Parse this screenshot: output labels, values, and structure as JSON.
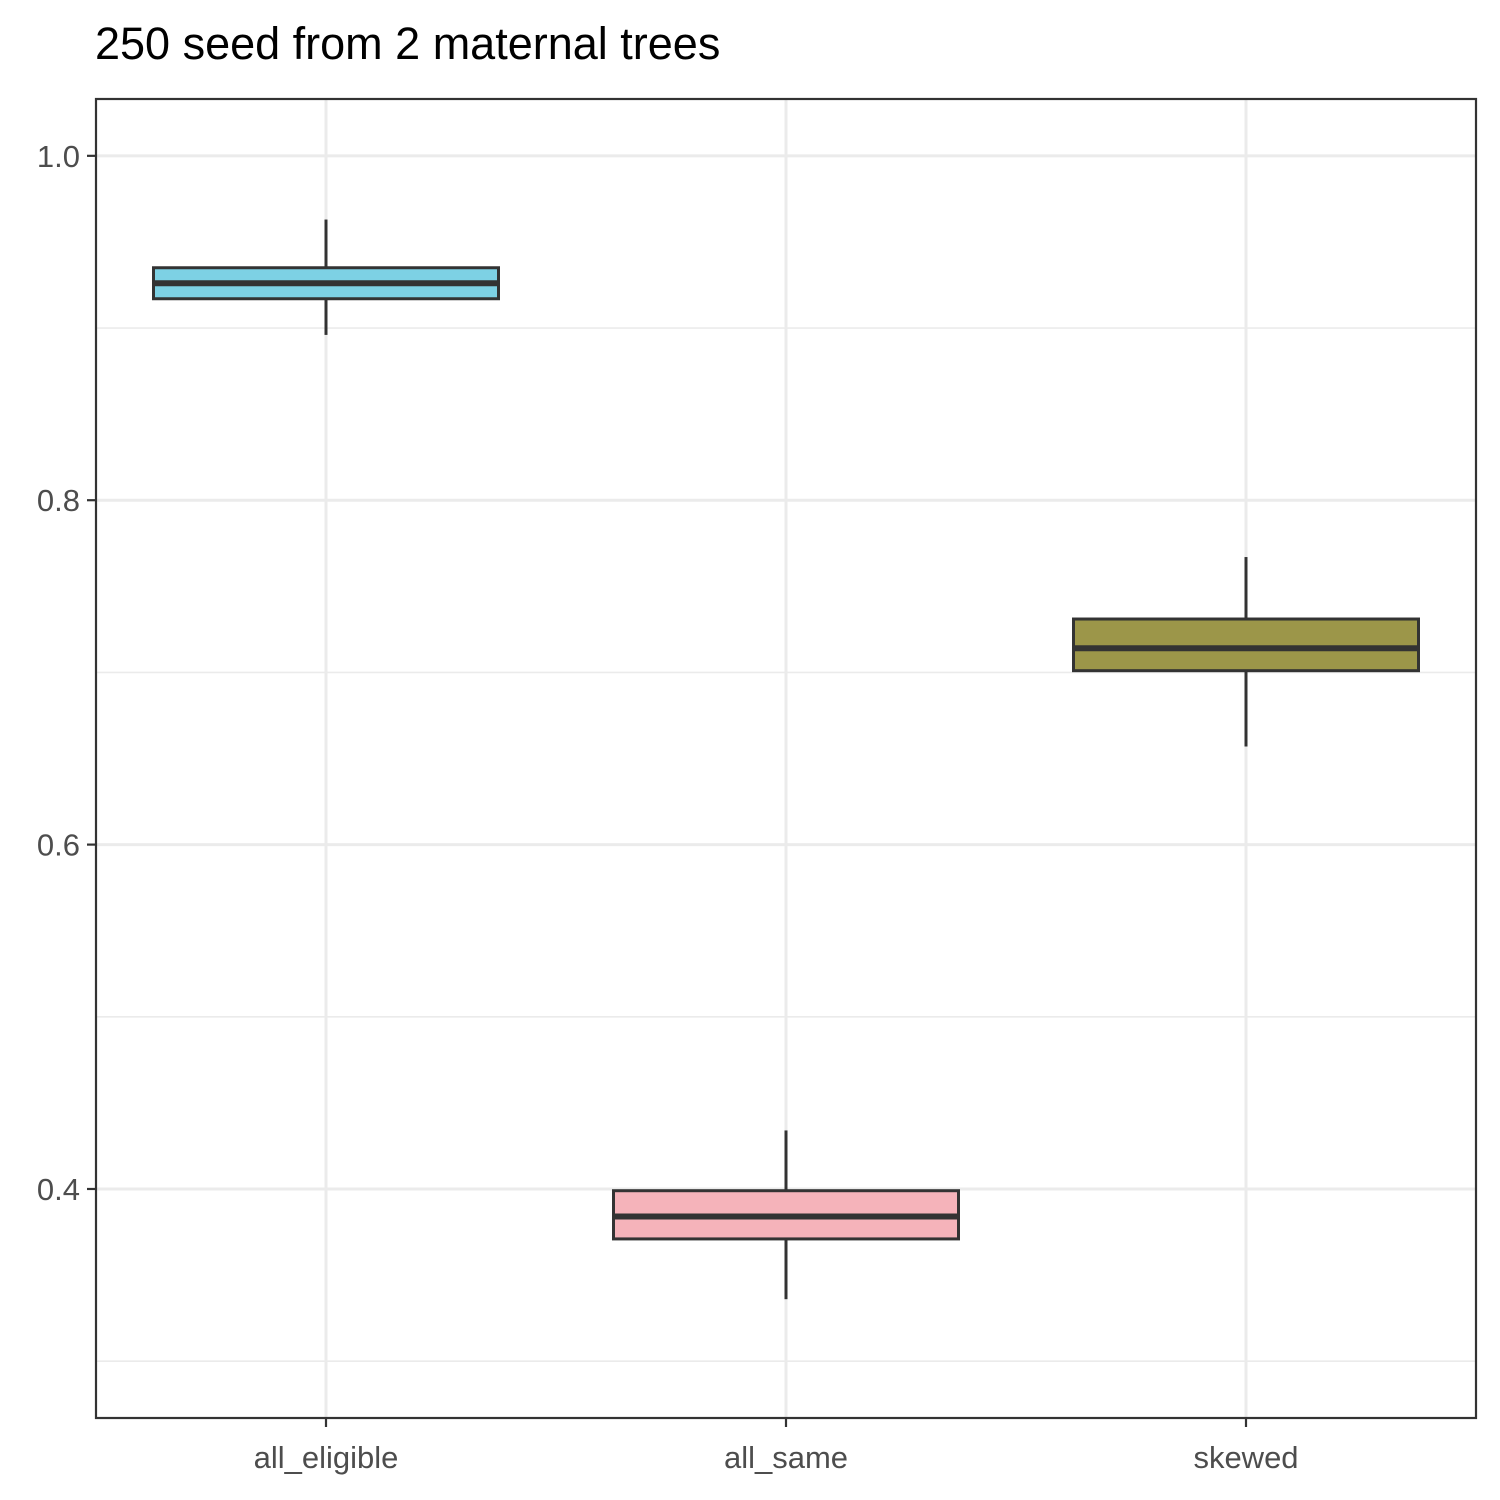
{
  "chart_data": {
    "type": "boxplot",
    "title": "250 seed from 2 maternal trees",
    "xlabel": "",
    "ylabel": "",
    "ylim": [
      0.267,
      1.033
    ],
    "y_major_ticks": [
      0.4,
      0.6,
      0.8,
      1.0
    ],
    "y_tick_labels": [
      "0.4",
      "0.6",
      "0.8",
      "1.0"
    ],
    "y_minor_ticks": [
      0.3,
      0.5,
      0.7,
      0.9
    ],
    "categories": [
      "all_eligible",
      "all_same",
      "skewed"
    ],
    "boxes": [
      {
        "category": "all_eligible",
        "whisker_low": 0.896,
        "q1": 0.917,
        "median": 0.926,
        "q3": 0.935,
        "whisker_high": 0.963,
        "fill": "#7dd1e4"
      },
      {
        "category": "all_same",
        "whisker_low": 0.336,
        "q1": 0.371,
        "median": 0.384,
        "q3": 0.399,
        "whisker_high": 0.434,
        "fill": "#f5b3ba"
      },
      {
        "category": "skewed",
        "whisker_low": 0.657,
        "q1": 0.701,
        "median": 0.714,
        "q3": 0.731,
        "whisker_high": 0.767,
        "fill": "#9c9649"
      }
    ],
    "grid": true,
    "legend": "none",
    "colors": {
      "box_outline": "#333333",
      "grid": "#ebebeb",
      "panel_border": "#333333",
      "axis_text": "#4d4d4d"
    }
  }
}
